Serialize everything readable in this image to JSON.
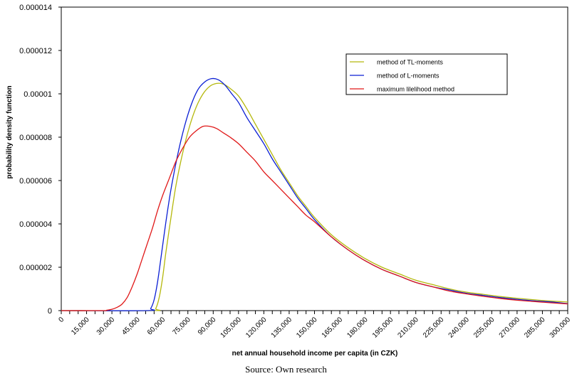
{
  "chart_data": {
    "type": "line",
    "title": "",
    "xlabel": "net annual household income per capita (in CZK)",
    "ylabel": "probability density function",
    "xlim": [
      0,
      300000
    ],
    "ylim": [
      0,
      1.4e-05
    ],
    "x_ticks": [
      "0",
      "15,000",
      "30,000",
      "45,000",
      "60,000",
      "75,000",
      "90,000",
      "105,000",
      "120,000",
      "135,000",
      "150,000",
      "165,000",
      "180,000",
      "195,000",
      "210,000",
      "225,000",
      "240,000",
      "255,000",
      "270,000",
      "285,000",
      "300,000"
    ],
    "y_ticks": [
      "0",
      "0.000002",
      "0.000004",
      "0.000006",
      "0.000008",
      "0.00001",
      "0.000012",
      "0.000014"
    ],
    "legend_position": "top-right",
    "series": [
      {
        "name": "method of TL-moments",
        "color": "#b5b80c",
        "points": [
          [
            0,
            0
          ],
          [
            54000,
            0
          ],
          [
            56000,
            1e-07
          ],
          [
            58000,
            6e-07
          ],
          [
            60000,
            1.5e-06
          ],
          [
            62000,
            2.7e-06
          ],
          [
            65000,
            4.3e-06
          ],
          [
            68000,
            5.8e-06
          ],
          [
            72000,
            7.3e-06
          ],
          [
            76000,
            8.5e-06
          ],
          [
            80000,
            9.4e-06
          ],
          [
            84000,
            1e-05
          ],
          [
            88000,
            1.035e-05
          ],
          [
            92000,
            1.048e-05
          ],
          [
            96000,
            1.045e-05
          ],
          [
            100000,
            1.025e-05
          ],
          [
            105000,
            9.9e-06
          ],
          [
            110000,
            9.3e-06
          ],
          [
            115000,
            8.6e-06
          ],
          [
            120000,
            7.9e-06
          ],
          [
            125000,
            7.2e-06
          ],
          [
            130000,
            6.5e-06
          ],
          [
            135000,
            5.9e-06
          ],
          [
            140000,
            5.3e-06
          ],
          [
            145000,
            4.8e-06
          ],
          [
            150000,
            4.3e-06
          ],
          [
            160000,
            3.5e-06
          ],
          [
            170000,
            2.9e-06
          ],
          [
            180000,
            2.4e-06
          ],
          [
            190000,
            2e-06
          ],
          [
            200000,
            1.7e-06
          ],
          [
            210000,
            1.4e-06
          ],
          [
            220000,
            1.2e-06
          ],
          [
            230000,
            1e-06
          ],
          [
            240000,
            8.5e-07
          ],
          [
            250000,
            7.5e-07
          ],
          [
            260000,
            6.5e-07
          ],
          [
            270000,
            5.7e-07
          ],
          [
            280000,
            5e-07
          ],
          [
            290000,
            4.4e-07
          ],
          [
            300000,
            4e-07
          ]
        ]
      },
      {
        "name": "method of L-moments",
        "color": "#0b1fd4",
        "points": [
          [
            0,
            0
          ],
          [
            51000,
            0
          ],
          [
            53000,
            1e-07
          ],
          [
            55000,
            5e-07
          ],
          [
            57000,
            1.3e-06
          ],
          [
            59000,
            2.4e-06
          ],
          [
            62000,
            4.1e-06
          ],
          [
            65000,
            5.6e-06
          ],
          [
            69000,
            7.2e-06
          ],
          [
            73000,
            8.5e-06
          ],
          [
            77000,
            9.5e-06
          ],
          [
            81000,
            1.02e-05
          ],
          [
            85000,
            1.055e-05
          ],
          [
            89000,
            1.07e-05
          ],
          [
            93000,
            1.065e-05
          ],
          [
            97000,
            1.04e-05
          ],
          [
            101000,
            1e-05
          ],
          [
            105000,
            9.6e-06
          ],
          [
            110000,
            8.9e-06
          ],
          [
            115000,
            8.3e-06
          ],
          [
            120000,
            7.7e-06
          ],
          [
            125000,
            7e-06
          ],
          [
            130000,
            6.4e-06
          ],
          [
            135000,
            5.8e-06
          ],
          [
            140000,
            5.2e-06
          ],
          [
            145000,
            4.7e-06
          ],
          [
            150000,
            4.2e-06
          ],
          [
            160000,
            3.4e-06
          ],
          [
            170000,
            2.8e-06
          ],
          [
            180000,
            2.3e-06
          ],
          [
            190000,
            1.9e-06
          ],
          [
            200000,
            1.6e-06
          ],
          [
            210000,
            1.3e-06
          ],
          [
            220000,
            1.1e-06
          ],
          [
            230000,
            9.5e-07
          ],
          [
            240000,
            8e-07
          ],
          [
            250000,
            7e-07
          ],
          [
            260000,
            6e-07
          ],
          [
            270000,
            5.2e-07
          ],
          [
            280000,
            4.5e-07
          ],
          [
            290000,
            4e-07
          ],
          [
            300000,
            3.2e-07
          ]
        ]
      },
      {
        "name": "maximum lilelihood method",
        "color": "#e01818",
        "points": [
          [
            0,
            0
          ],
          [
            24000,
            0
          ],
          [
            27000,
            2e-08
          ],
          [
            30000,
            6e-08
          ],
          [
            33000,
            1.5e-07
          ],
          [
            36000,
            3e-07
          ],
          [
            39000,
            6e-07
          ],
          [
            42000,
            1.1e-06
          ],
          [
            45000,
            1.7e-06
          ],
          [
            48000,
            2.4e-06
          ],
          [
            51000,
            3.1e-06
          ],
          [
            54000,
            3.8e-06
          ],
          [
            57000,
            4.6e-06
          ],
          [
            60000,
            5.3e-06
          ],
          [
            64000,
            6.1e-06
          ],
          [
            68000,
            6.9e-06
          ],
          [
            72000,
            7.5e-06
          ],
          [
            76000,
            8e-06
          ],
          [
            80000,
            8.3e-06
          ],
          [
            84000,
            8.5e-06
          ],
          [
            88000,
            8.5e-06
          ],
          [
            92000,
            8.4e-06
          ],
          [
            96000,
            8.2e-06
          ],
          [
            100000,
            8e-06
          ],
          [
            105000,
            7.7e-06
          ],
          [
            110000,
            7.3e-06
          ],
          [
            115000,
            6.9e-06
          ],
          [
            120000,
            6.4e-06
          ],
          [
            125000,
            6e-06
          ],
          [
            130000,
            5.6e-06
          ],
          [
            135000,
            5.2e-06
          ],
          [
            140000,
            4.8e-06
          ],
          [
            145000,
            4.4e-06
          ],
          [
            150000,
            4.1e-06
          ],
          [
            160000,
            3.4e-06
          ],
          [
            170000,
            2.8e-06
          ],
          [
            180000,
            2.3e-06
          ],
          [
            190000,
            1.9e-06
          ],
          [
            200000,
            1.6e-06
          ],
          [
            210000,
            1.3e-06
          ],
          [
            220000,
            1.1e-06
          ],
          [
            230000,
            9e-07
          ],
          [
            240000,
            7.7e-07
          ],
          [
            250000,
            6.6e-07
          ],
          [
            260000,
            5.6e-07
          ],
          [
            270000,
            4.8e-07
          ],
          [
            280000,
            4.2e-07
          ],
          [
            290000,
            3.6e-07
          ],
          [
            300000,
            3.1e-07
          ]
        ]
      }
    ]
  },
  "source": "Source: Own research"
}
